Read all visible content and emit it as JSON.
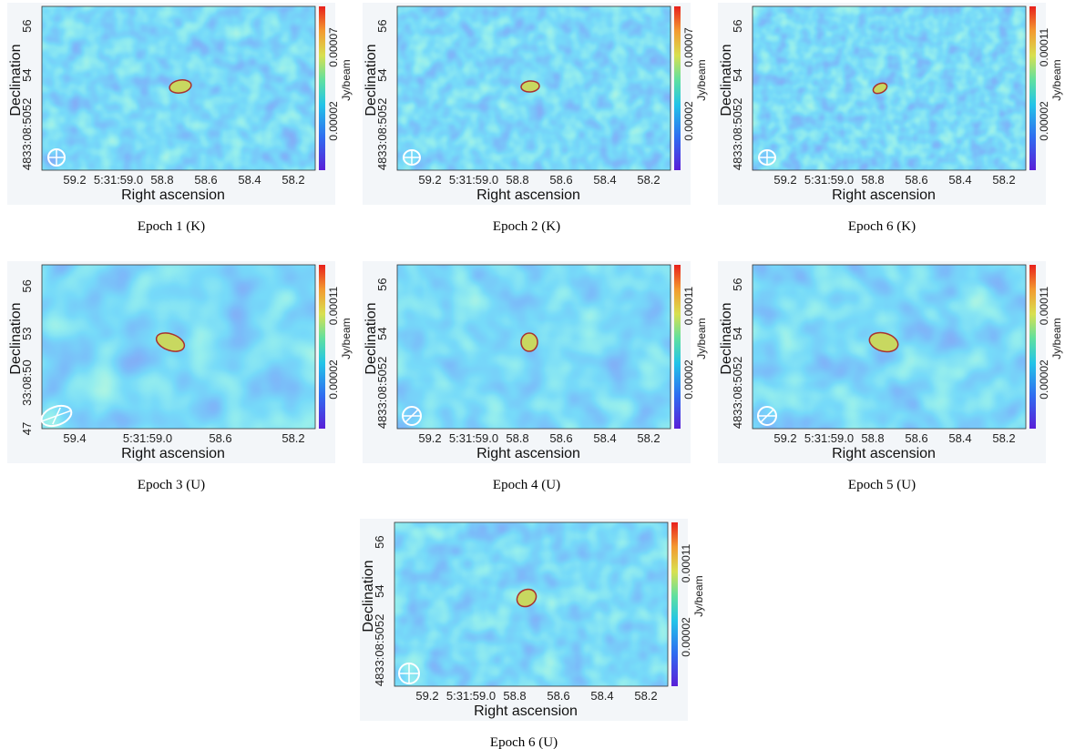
{
  "panels": [
    {
      "caption": "Epoch 1 (K)",
      "x_label": "Right ascension",
      "y_label": "Declination",
      "x_ticks": [
        "59.2",
        "5:31:59.0",
        "58.8",
        "58.6",
        "58.4",
        "58.2"
      ],
      "y_ticks": [
        "4833:08:5052",
        "54",
        "56"
      ],
      "colorbar_ticks": [
        "0.00002",
        "0.00007"
      ],
      "colorbar_label": "Jy/beam"
    },
    {
      "caption": "Epoch 2 (K)",
      "x_label": "Right ascension",
      "y_label": "Declination",
      "x_ticks": [
        "59.2",
        "5:31:59.0",
        "58.8",
        "58.6",
        "58.4",
        "58.2"
      ],
      "y_ticks": [
        "4833:08:5052",
        "54",
        "56"
      ],
      "colorbar_ticks": [
        "0.00002",
        "0.00007"
      ],
      "colorbar_label": "Jy/beam"
    },
    {
      "caption": "Epoch 6 (K)",
      "x_label": "Right ascension",
      "y_label": "Declination",
      "x_ticks": [
        "59.2",
        "5:31:59.0",
        "58.8",
        "58.6",
        "58.4",
        "58.2"
      ],
      "y_ticks": [
        "4833:08:5052",
        "54",
        "56"
      ],
      "colorbar_ticks": [
        "0.00002",
        "0.00011"
      ],
      "colorbar_label": "Jy/beam"
    },
    {
      "caption": "Epoch 3 (U)",
      "x_label": "Right ascension",
      "y_label": "Declination",
      "x_ticks": [
        "59.4",
        "5:31:59.0",
        "58.6",
        "58.2"
      ],
      "y_ticks": [
        "47",
        "33:08:50",
        "53",
        "56"
      ],
      "colorbar_ticks": [
        "0.00002",
        "0.00011"
      ],
      "colorbar_label": "Jy/beam"
    },
    {
      "caption": "Epoch 4 (U)",
      "x_label": "Right ascension",
      "y_label": "Declination",
      "x_ticks": [
        "59.2",
        "5:31:59.0",
        "58.8",
        "58.6",
        "58.4",
        "58.2"
      ],
      "y_ticks": [
        "4833:08:5052",
        "54",
        "56"
      ],
      "colorbar_ticks": [
        "0.00002",
        "0.00011"
      ],
      "colorbar_label": "Jy/beam"
    },
    {
      "caption": "Epoch 5 (U)",
      "x_label": "Right ascension",
      "y_label": "Declination",
      "x_ticks": [
        "59.2",
        "5:31:59.0",
        "58.8",
        "58.6",
        "58.4",
        "58.2"
      ],
      "y_ticks": [
        "4833:08:5052",
        "54",
        "56"
      ],
      "colorbar_ticks": [
        "0.00002",
        "0.00011"
      ],
      "colorbar_label": "Jy/beam"
    },
    {
      "caption": "Epoch 6 (U)",
      "x_label": "Right ascension",
      "y_label": "Declination",
      "x_ticks": [
        "59.2",
        "5:31:59.0",
        "58.8",
        "58.6",
        "58.4",
        "58.2"
      ],
      "y_ticks": [
        "4833:08:5052",
        "54",
        "56"
      ],
      "colorbar_ticks": [
        "0.00002",
        "0.00011"
      ],
      "colorbar_label": "Jy/beam"
    }
  ]
}
